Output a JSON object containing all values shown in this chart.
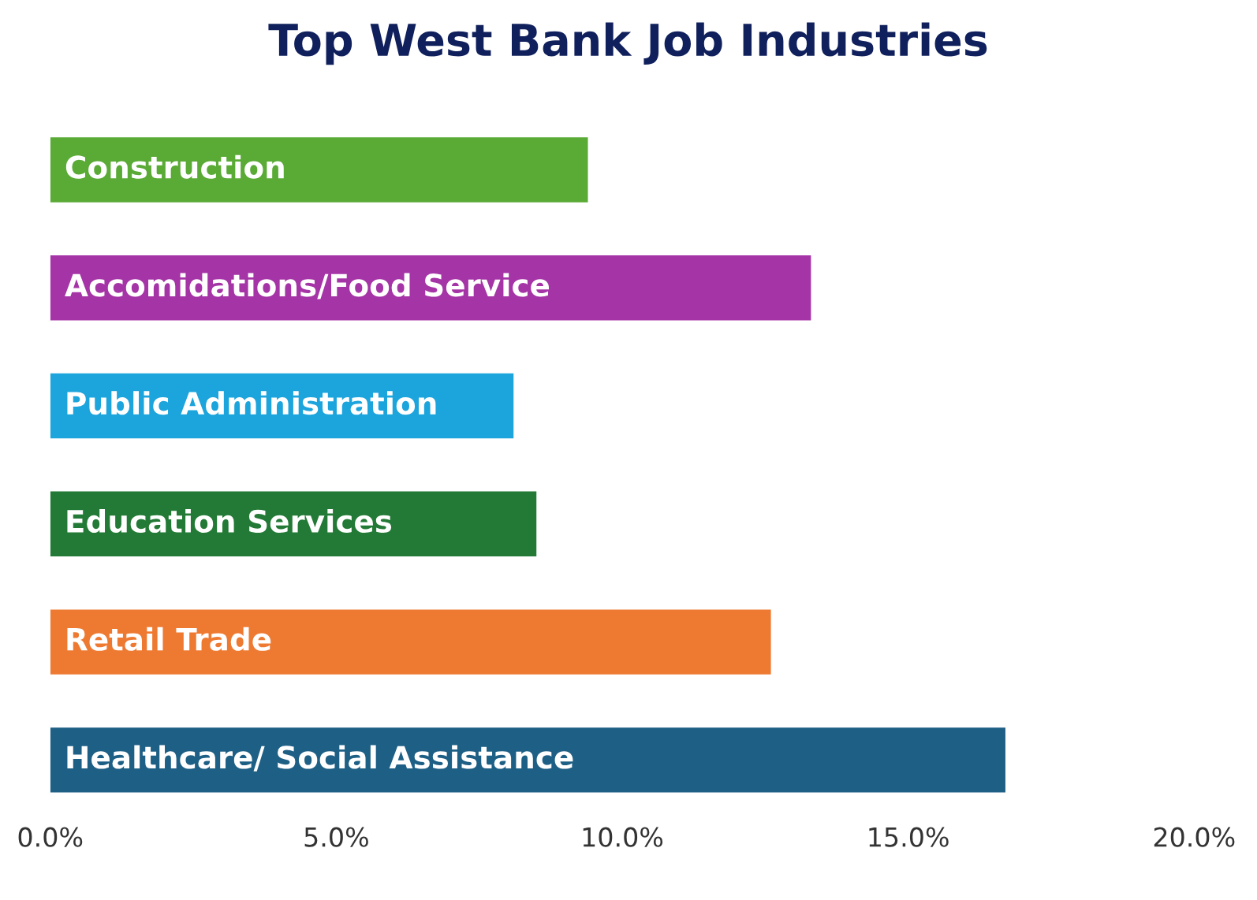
{
  "chart_data": {
    "type": "bar",
    "orientation": "horizontal",
    "title": "Top West Bank Job Industries",
    "categories": [
      "Construction",
      "Accomidations/Food Service",
      "Public Administration",
      "Education Services",
      "Retail Trade",
      "Healthcare/ Social Assistance"
    ],
    "values": [
      9.4,
      13.3,
      8.1,
      8.5,
      12.6,
      16.7
    ],
    "colors": [
      "#5aaa36",
      "#a534a6",
      "#1ca4dc",
      "#237a36",
      "#ee7a32",
      "#1e5f85"
    ],
    "xlim": [
      0,
      20
    ],
    "xticks": [
      {
        "value": 0,
        "label": "0.0%"
      },
      {
        "value": 5,
        "label": "5.0%"
      },
      {
        "value": 10,
        "label": "10.0%"
      },
      {
        "value": 15,
        "label": "15.0%"
      },
      {
        "value": 20,
        "label": "20.0%"
      }
    ],
    "grid": false,
    "legend": false
  }
}
